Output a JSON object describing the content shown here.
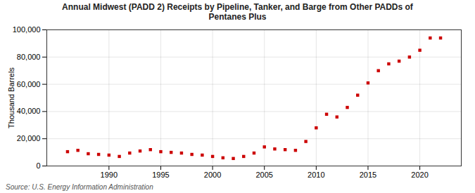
{
  "chart_data": {
    "type": "scatter",
    "title": "Annual Midwest (PADD 2) Receipts by Pipeline, Tanker, and Barge from Other PADDs of\nPentanes Plus",
    "ylabel": "Thousand Barrels",
    "source": "Source: U.S. Energy Information Administration",
    "x": [
      1986,
      1987,
      1988,
      1989,
      1990,
      1991,
      1992,
      1993,
      1994,
      1995,
      1996,
      1997,
      1998,
      1999,
      2000,
      2001,
      2002,
      2003,
      2004,
      2005,
      2006,
      2007,
      2008,
      2009,
      2010,
      2011,
      2012,
      2013,
      2014,
      2015,
      2016,
      2017,
      2018,
      2019,
      2020,
      2021,
      2022
    ],
    "values": [
      10500,
      11500,
      9000,
      8500,
      8000,
      7000,
      9500,
      11000,
      12000,
      10500,
      10000,
      9500,
      8500,
      8000,
      7000,
      6000,
      5500,
      7000,
      9500,
      14000,
      12500,
      12000,
      11500,
      18000,
      28000,
      38000,
      36000,
      43000,
      52000,
      61000,
      70000,
      75000,
      77000,
      80000,
      85000,
      94000,
      94000
    ],
    "color": "#cc0000",
    "marker": "square",
    "xlim": [
      1984,
      2024
    ],
    "xticks": [
      1990,
      1995,
      2000,
      2005,
      2010,
      2015,
      2020
    ],
    "ylim": [
      0,
      100000
    ],
    "yticks": [
      0,
      {
        "value": 20000,
        "label": "20,000"
      },
      {
        "value": 40000,
        "label": "40,000"
      },
      {
        "value": 60000,
        "label": "60,000"
      },
      {
        "value": 80000,
        "label": "80,000"
      },
      {
        "value": 100000,
        "label": "100,000"
      }
    ],
    "grid": true
  }
}
